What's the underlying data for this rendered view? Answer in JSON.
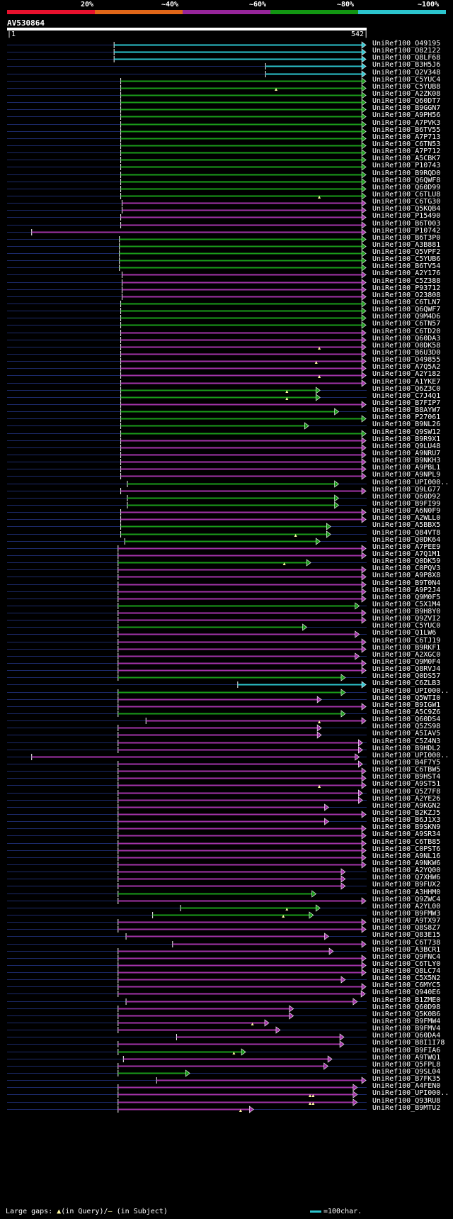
{
  "header": {
    "percent_labels": [
      "20%",
      "~40%",
      "~60%",
      "~80%",
      "~100%"
    ],
    "legend_colors": [
      "#e8112d",
      "#e06618",
      "#96259a",
      "#129612",
      "#2cc5ce"
    ]
  },
  "query": {
    "name": "AV530864",
    "start": "1",
    "end": "542",
    "length": 542
  },
  "colors": {
    "cyan": "#2cc5ce",
    "green": "#1a9c1a",
    "magenta": "#a233a8",
    "bg_line": "#1c2a6a",
    "marker": "#fdf8a0"
  },
  "hits": [
    {
      "label": "UniRef100_O49195",
      "start": 162,
      "end": 541,
      "color": "cyan"
    },
    {
      "label": "UniRef100_O82122",
      "start": 162,
      "end": 541,
      "color": "cyan"
    },
    {
      "label": "UniRef100_Q8LF68",
      "start": 162,
      "end": 541,
      "color": "cyan"
    },
    {
      "label": "UniRef100_B3H5J6",
      "start": 390,
      "end": 541,
      "color": "cyan"
    },
    {
      "label": "UniRef100_Q2V348",
      "start": 390,
      "end": 541,
      "color": "cyan"
    },
    {
      "label": "UniRef100_C5YUC4",
      "start": 172,
      "end": 541,
      "color": "green"
    },
    {
      "label": "UniRef100_C5YUB8",
      "start": 172,
      "end": 541,
      "color": "green",
      "markers": [
        524
      ]
    },
    {
      "label": "UniRef100_A2ZK08",
      "start": 172,
      "end": 541,
      "color": "green"
    },
    {
      "label": "UniRef100_Q60DT7",
      "start": 172,
      "end": 541,
      "color": "green"
    },
    {
      "label": "UniRef100_B9GGN7",
      "start": 172,
      "end": 541,
      "color": "green"
    },
    {
      "label": "UniRef100_A9PH56",
      "start": 172,
      "end": 541,
      "color": "green"
    },
    {
      "label": "UniRef100_A7PVK3",
      "start": 172,
      "end": 541,
      "color": "green"
    },
    {
      "label": "UniRef100_B6TV55",
      "start": 172,
      "end": 541,
      "color": "green"
    },
    {
      "label": "UniRef100_A7P713",
      "start": 172,
      "end": 541,
      "color": "green"
    },
    {
      "label": "UniRef100_C6TN53",
      "start": 172,
      "end": 541,
      "color": "green"
    },
    {
      "label": "UniRef100_A7P712",
      "start": 172,
      "end": 541,
      "color": "green"
    },
    {
      "label": "UniRef100_A5CBK7",
      "start": 172,
      "end": 541,
      "color": "green"
    },
    {
      "label": "UniRef100_P10743",
      "start": 172,
      "end": 541,
      "color": "green"
    },
    {
      "label": "UniRef100_B9RQD0",
      "start": 172,
      "end": 541,
      "color": "green"
    },
    {
      "label": "UniRef100_Q6QWF8",
      "start": 172,
      "end": 541,
      "color": "green"
    },
    {
      "label": "UniRef100_Q60D99",
      "start": 172,
      "end": 541,
      "color": "green"
    },
    {
      "label": "UniRef100_C6TLU8",
      "start": 172,
      "end": 541,
      "color": "green",
      "markers": [
        608
      ]
    },
    {
      "label": "UniRef100_C6TG30",
      "start": 174,
      "end": 541,
      "color": "magenta"
    },
    {
      "label": "UniRef100_Q5KQB4",
      "start": 174,
      "end": 541,
      "color": "magenta"
    },
    {
      "label": "UniRef100_P15490",
      "start": 172,
      "end": 541,
      "color": "magenta"
    },
    {
      "label": "UniRef100_B6T003",
      "start": 172,
      "end": 541,
      "color": "magenta"
    },
    {
      "label": "UniRef100_P10742",
      "start": 38,
      "end": 541,
      "color": "magenta"
    },
    {
      "label": "UniRef100_B6T3P0",
      "start": 170,
      "end": 541,
      "color": "green"
    },
    {
      "label": "UniRef100_A3B881",
      "start": 170,
      "end": 541,
      "color": "green"
    },
    {
      "label": "UniRef100_Q5VPF2",
      "start": 170,
      "end": 541,
      "color": "green"
    },
    {
      "label": "UniRef100_C5YUB6",
      "start": 170,
      "end": 541,
      "color": "green"
    },
    {
      "label": "UniRef100_B6TV54",
      "start": 170,
      "end": 541,
      "color": "green"
    },
    {
      "label": "UniRef100_A2Y176",
      "start": 174,
      "end": 541,
      "color": "magenta"
    },
    {
      "label": "UniRef100_C5Z388",
      "start": 174,
      "end": 541,
      "color": "magenta"
    },
    {
      "label": "UniRef100_P93712",
      "start": 174,
      "end": 541,
      "color": "magenta"
    },
    {
      "label": "UniRef100_O23808",
      "start": 174,
      "end": 541,
      "color": "magenta"
    },
    {
      "label": "UniRef100_C6TLN7",
      "start": 172,
      "end": 541,
      "color": "green"
    },
    {
      "label": "UniRef100_Q6QWF7",
      "start": 172,
      "end": 541,
      "color": "green"
    },
    {
      "label": "UniRef100_Q9M4D6",
      "start": 172,
      "end": 541,
      "color": "green"
    },
    {
      "label": "UniRef100_C6TN57",
      "start": 172,
      "end": 541,
      "color": "green"
    },
    {
      "label": "UniRef100_C6TD20",
      "start": 172,
      "end": 541,
      "color": "magenta"
    },
    {
      "label": "UniRef100_Q60DA3",
      "start": 172,
      "end": 541,
      "color": "magenta"
    },
    {
      "label": "UniRef100_O0DK58",
      "start": 172,
      "end": 541,
      "color": "magenta",
      "markers": [
        608
      ]
    },
    {
      "label": "UniRef100_B6U3D0",
      "start": 172,
      "end": 541,
      "color": "magenta"
    },
    {
      "label": "UniRef100_O49855",
      "start": 172,
      "end": 541,
      "color": "magenta",
      "markers": [
        602
      ]
    },
    {
      "label": "UniRef100_A7Q5A2",
      "start": 172,
      "end": 541,
      "color": "magenta"
    },
    {
      "label": "UniRef100_A2Y182",
      "start": 172,
      "end": 541,
      "color": "magenta",
      "markers": [
        608
      ]
    },
    {
      "label": "UniRef100_A1YKE7",
      "start": 172,
      "end": 541,
      "color": "magenta"
    },
    {
      "label": "UniRef100_Q6Z3C0",
      "start": 172,
      "end": 472,
      "color": "green",
      "markers": [
        545
      ]
    },
    {
      "label": "UniRef100_C7J4Q1",
      "start": 172,
      "end": 472,
      "color": "green",
      "markers": [
        545
      ]
    },
    {
      "label": "UniRef100_B7FIP7",
      "start": 172,
      "end": 541,
      "color": "magenta"
    },
    {
      "label": "UniRef100_B8AYW7",
      "start": 172,
      "end": 500,
      "color": "green"
    },
    {
      "label": "UniRef100_P27061",
      "start": 172,
      "end": 541,
      "color": "green"
    },
    {
      "label": "UniRef100_B9NL26",
      "start": 172,
      "end": 455,
      "color": "green"
    },
    {
      "label": "UniRef100_Q9SW12",
      "start": 172,
      "end": 541,
      "color": "green"
    },
    {
      "label": "UniRef100_B9R9X1",
      "start": 172,
      "end": 541,
      "color": "magenta"
    },
    {
      "label": "UniRef100_Q9LU48",
      "start": 172,
      "end": 541,
      "color": "magenta"
    },
    {
      "label": "UniRef100_A9NRU7",
      "start": 172,
      "end": 541,
      "color": "magenta"
    },
    {
      "label": "UniRef100_B9NKH3",
      "start": 172,
      "end": 541,
      "color": "magenta"
    },
    {
      "label": "UniRef100_A9PBL1",
      "start": 172,
      "end": 541,
      "color": "magenta"
    },
    {
      "label": "UniRef100_A9NPL9",
      "start": 172,
      "end": 541,
      "color": "magenta"
    },
    {
      "label": "UniRef100_UPI000..",
      "start": 182,
      "end": 500,
      "color": "green"
    },
    {
      "label": "UniRef100_Q9LG77",
      "start": 172,
      "end": 541,
      "color": "magenta"
    },
    {
      "label": "UniRef100_Q60D92",
      "start": 182,
      "end": 500,
      "color": "green"
    },
    {
      "label": "UniRef100_B9FI99",
      "start": 182,
      "end": 500,
      "color": "green"
    },
    {
      "label": "UniRef100_A6N0F9",
      "start": 172,
      "end": 541,
      "color": "magenta"
    },
    {
      "label": "UniRef100_A2WLL0",
      "start": 172,
      "end": 541,
      "color": "magenta"
    },
    {
      "label": "UniRef100_A5BBX5",
      "start": 172,
      "end": 488,
      "color": "green"
    },
    {
      "label": "UniRef100_Q84VT8",
      "start": 172,
      "end": 488,
      "color": "green",
      "markers": [
        562
      ]
    },
    {
      "label": "UniRef100_Q0DK64",
      "start": 178,
      "end": 472,
      "color": "green"
    },
    {
      "label": "UniRef100_A7PEE9",
      "start": 168,
      "end": 541,
      "color": "magenta"
    },
    {
      "label": "UniRef100_A7Q1M1",
      "start": 168,
      "end": 541,
      "color": "magenta"
    },
    {
      "label": "UniRef100_Q0DK59",
      "start": 168,
      "end": 458,
      "color": "green",
      "markers": [
        540
      ]
    },
    {
      "label": "UniRef100_C0PQV3",
      "start": 168,
      "end": 541,
      "color": "magenta"
    },
    {
      "label": "UniRef100_A9P8X8",
      "start": 168,
      "end": 541,
      "color": "magenta"
    },
    {
      "label": "UniRef100_B9T0N4",
      "start": 168,
      "end": 541,
      "color": "magenta"
    },
    {
      "label": "UniRef100_A9P2J4",
      "start": 168,
      "end": 541,
      "color": "magenta"
    },
    {
      "label": "UniRef100_Q9M0F5",
      "start": 168,
      "end": 541,
      "color": "magenta"
    },
    {
      "label": "UniRef100_C5X1M4",
      "start": 168,
      "end": 531,
      "color": "green"
    },
    {
      "label": "UniRef100_B9H8Y0",
      "start": 168,
      "end": 541,
      "color": "magenta"
    },
    {
      "label": "UniRef100_Q9ZVI2",
      "start": 168,
      "end": 541,
      "color": "magenta"
    },
    {
      "label": "UniRef100_C5YUC0",
      "start": 168,
      "end": 452,
      "color": "green"
    },
    {
      "label": "UniRef100_Q1LW6",
      "start": 168,
      "end": 531,
      "color": "magenta"
    },
    {
      "label": "UniRef100_C6TJ19",
      "start": 168,
      "end": 541,
      "color": "magenta"
    },
    {
      "label": "UniRef100_B9RKF1",
      "start": 168,
      "end": 541,
      "color": "magenta"
    },
    {
      "label": "UniRef100_A2XGC0",
      "start": 168,
      "end": 531,
      "color": "magenta"
    },
    {
      "label": "UniRef100_Q9M0F4",
      "start": 168,
      "end": 541,
      "color": "magenta"
    },
    {
      "label": "UniRef100_Q8RVJ4",
      "start": 168,
      "end": 541,
      "color": "magenta"
    },
    {
      "label": "UniRef100_Q0DS57",
      "start": 168,
      "end": 510,
      "color": "green"
    },
    {
      "label": "UniRef100_C6ZLB3",
      "start": 348,
      "end": 541,
      "color": "cyan"
    },
    {
      "label": "UniRef100_UPI000..",
      "start": 168,
      "end": 510,
      "color": "green"
    },
    {
      "label": "UniRef100_Q5WTI0",
      "start": 168,
      "end": 474,
      "color": "magenta"
    },
    {
      "label": "UniRef100_B9IGW1",
      "start": 168,
      "end": 541,
      "color": "magenta"
    },
    {
      "label": "UniRef100_A5C9Z6",
      "start": 168,
      "end": 510,
      "color": "green"
    },
    {
      "label": "UniRef100_Q60DS4",
      "start": 210,
      "end": 541,
      "color": "magenta",
      "markers": [
        608
      ]
    },
    {
      "label": "UniRef100_Q5ZS98",
      "start": 168,
      "end": 474,
      "color": "magenta"
    },
    {
      "label": "UniRef100_A5IAV5",
      "start": 168,
      "end": 474,
      "color": "magenta"
    },
    {
      "label": "UniRef100_C5Z4N3",
      "start": 168,
      "end": 536,
      "color": "magenta"
    },
    {
      "label": "UniRef100_B9HDL2",
      "start": 168,
      "end": 536,
      "color": "magenta"
    },
    {
      "label": "UniRef100_UPI000..",
      "start": 38,
      "end": 531,
      "color": "magenta"
    },
    {
      "label": "UniRef100_B4F7Y5",
      "start": 168,
      "end": 536,
      "color": "magenta"
    },
    {
      "label": "UniRef100_C6TBW5",
      "start": 168,
      "end": 541,
      "color": "magenta"
    },
    {
      "label": "UniRef100_B9HST4",
      "start": 168,
      "end": 541,
      "color": "magenta"
    },
    {
      "label": "UniRef100_A9ST51",
      "start": 168,
      "end": 541,
      "color": "magenta",
      "markers": [
        608
      ]
    },
    {
      "label": "UniRef100_Q5Z7F8",
      "start": 168,
      "end": 536,
      "color": "magenta"
    },
    {
      "label": "UniRef100_A2YE26",
      "start": 168,
      "end": 536,
      "color": "magenta"
    },
    {
      "label": "UniRef100_A9KGN2",
      "start": 168,
      "end": 485,
      "color": "magenta"
    },
    {
      "label": "UniRef100_B2KZJ5",
      "start": 168,
      "end": 541,
      "color": "magenta"
    },
    {
      "label": "UniRef100_B6J1X3",
      "start": 168,
      "end": 485,
      "color": "magenta"
    },
    {
      "label": "UniRef100_B9SKN9",
      "start": 168,
      "end": 541,
      "color": "magenta"
    },
    {
      "label": "UniRef100_A9SR34",
      "start": 168,
      "end": 541,
      "color": "magenta"
    },
    {
      "label": "UniRef100_C6TB85",
      "start": 168,
      "end": 541,
      "color": "magenta"
    },
    {
      "label": "UniRef100_C0PST6",
      "start": 168,
      "end": 541,
      "color": "magenta"
    },
    {
      "label": "UniRef100_A9NL16",
      "start": 168,
      "end": 541,
      "color": "magenta"
    },
    {
      "label": "UniRef100_A9NKW6",
      "start": 168,
      "end": 541,
      "color": "magenta"
    },
    {
      "label": "UniRef100_A2YQ00",
      "start": 168,
      "end": 510,
      "color": "magenta"
    },
    {
      "label": "UniRef100_Q7XHW6",
      "start": 168,
      "end": 510,
      "color": "magenta"
    },
    {
      "label": "UniRef100_B9FUX2",
      "start": 168,
      "end": 510,
      "color": "magenta"
    },
    {
      "label": "UniRef100_A3HHM0",
      "start": 168,
      "end": 466,
      "color": "green"
    },
    {
      "label": "UniRef100_Q9ZWC4",
      "start": 168,
      "end": 541,
      "color": "magenta"
    },
    {
      "label": "UniRef100_A2YL00",
      "start": 262,
      "end": 472,
      "color": "green",
      "markers": [
        545
      ]
    },
    {
      "label": "UniRef100_B9FMW3",
      "start": 220,
      "end": 462,
      "color": "green",
      "markers": [
        538
      ]
    },
    {
      "label": "UniRef100_A9TX97",
      "start": 168,
      "end": 541,
      "color": "magenta"
    },
    {
      "label": "UniRef100_Q8S8Z7",
      "start": 168,
      "end": 541,
      "color": "magenta"
    },
    {
      "label": "UniRef100_Q83E15",
      "start": 180,
      "end": 485,
      "color": "magenta"
    },
    {
      "label": "UniRef100_C6T738",
      "start": 250,
      "end": 541,
      "color": "magenta"
    },
    {
      "label": "UniRef100_A3BCR1",
      "start": 168,
      "end": 492,
      "color": "magenta"
    },
    {
      "label": "UniRef100_Q9FNC4",
      "start": 168,
      "end": 541,
      "color": "magenta"
    },
    {
      "label": "UniRef100_C6TLY0",
      "start": 168,
      "end": 541,
      "color": "magenta"
    },
    {
      "label": "UniRef100_Q8LC74",
      "start": 168,
      "end": 541,
      "color": "magenta"
    },
    {
      "label": "UniRef100_C5X5N2",
      "start": 168,
      "end": 510,
      "color": "magenta"
    },
    {
      "label": "UniRef100_C6MYC5",
      "start": 168,
      "end": 541,
      "color": "magenta"
    },
    {
      "label": "UniRef100_Q940E6",
      "start": 168,
      "end": 540,
      "color": "magenta"
    },
    {
      "label": "UniRef100_B1ZME0",
      "start": 180,
      "end": 528,
      "color": "magenta"
    },
    {
      "label": "UniRef100_Q60D98",
      "start": 168,
      "end": 432,
      "color": "magenta"
    },
    {
      "label": "UniRef100_Q5K0B6",
      "start": 168,
      "end": 432,
      "color": "magenta"
    },
    {
      "label": "UniRef100_B9FMW4",
      "start": 168,
      "end": 395,
      "color": "magenta",
      "markers": [
        478
      ]
    },
    {
      "label": "UniRef100_B9FMV4",
      "start": 168,
      "end": 412,
      "color": "magenta"
    },
    {
      "label": "UniRef100_Q60DA4",
      "start": 256,
      "end": 508,
      "color": "magenta"
    },
    {
      "label": "UniRef100_B8I1I78",
      "start": 168,
      "end": 508,
      "color": "magenta"
    },
    {
      "label": "UniRef100_B9FIA6",
      "start": 168,
      "end": 360,
      "color": "green",
      "markers": [
        442
      ]
    },
    {
      "label": "UniRef100_A9TWQ1",
      "start": 176,
      "end": 490,
      "color": "magenta"
    },
    {
      "label": "UniRef100_Q5FPL8",
      "start": 168,
      "end": 484,
      "color": "magenta"
    },
    {
      "label": "UniRef100_Q9SL04",
      "start": 168,
      "end": 276,
      "color": "green"
    },
    {
      "label": "UniRef100_B7FK35",
      "start": 226,
      "end": 541,
      "color": "magenta"
    },
    {
      "label": "UniRef100_A4FEN0",
      "start": 168,
      "end": 528,
      "color": "magenta"
    },
    {
      "label": "UniRef100_UPI000..",
      "start": 168,
      "end": 528,
      "color": "magenta",
      "markers": [
        590,
        596
      ]
    },
    {
      "label": "UniRef100_Q93RU8",
      "start": 168,
      "end": 528,
      "color": "magenta",
      "markers": [
        590,
        596
      ]
    },
    {
      "label": "UniRef100_B9MTU2",
      "start": 168,
      "end": 372,
      "color": "magenta",
      "markers": [
        455
      ]
    }
  ],
  "footer": {
    "legend_prefix": "Large gaps:",
    "legend_query": "(in Query)/",
    "legend_subject": "(in Subject)",
    "scale_text": "=100char."
  }
}
